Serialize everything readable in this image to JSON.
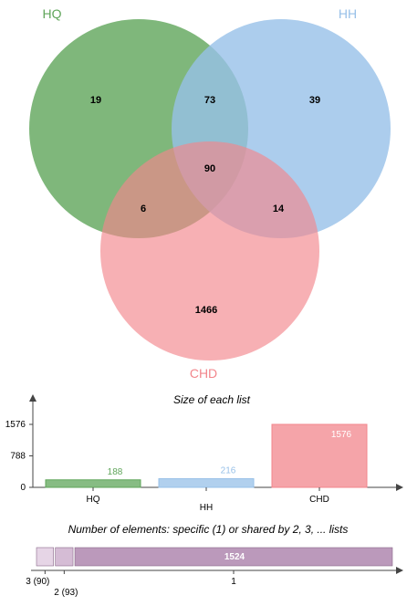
{
  "chart_data": [
    {
      "type": "venn",
      "sets": [
        {
          "name": "HQ",
          "color": "#5fa55a"
        },
        {
          "name": "HH",
          "color": "#97c0e8"
        },
        {
          "name": "CHD",
          "color": "#f2868c"
        }
      ],
      "regions": [
        {
          "sets": [
            "HQ"
          ],
          "value": 19
        },
        {
          "sets": [
            "HH"
          ],
          "value": 39
        },
        {
          "sets": [
            "CHD"
          ],
          "value": 1466
        },
        {
          "sets": [
            "HQ",
            "HH"
          ],
          "value": 73
        },
        {
          "sets": [
            "HQ",
            "CHD"
          ],
          "value": 6
        },
        {
          "sets": [
            "HH",
            "CHD"
          ],
          "value": 14
        },
        {
          "sets": [
            "HQ",
            "HH",
            "CHD"
          ],
          "value": 90
        }
      ]
    },
    {
      "type": "bar",
      "title": "Size of each list",
      "categories": [
        "HQ",
        "HH",
        "CHD"
      ],
      "values": [
        188,
        216,
        1576
      ],
      "colors": [
        "#5fa55a",
        "#97c0e8",
        "#f2868c"
      ],
      "yticks": [
        "0",
        "788",
        "1576"
      ],
      "ylim": [
        0,
        1576
      ]
    },
    {
      "type": "bar",
      "title": "Number of elements: specific (1) or shared by 2, 3, ... lists",
      "orientation": "horizontal-stacked",
      "segments": [
        {
          "label": "3 (90)",
          "value": 90,
          "color": "#e6d5e6"
        },
        {
          "label": "2 (93)",
          "value": 93,
          "color": "#d5bcd5"
        },
        {
          "label": "1",
          "value": 1524,
          "color": "#bb99bb",
          "value_label": "1524"
        }
      ]
    }
  ]
}
